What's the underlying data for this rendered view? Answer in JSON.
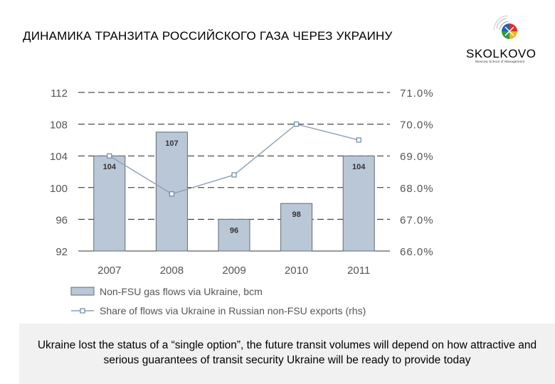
{
  "title": "ДИНАМИКА ТРАНЗИТА РОССИЙСКОГО ГАЗА ЧЕРЕЗ УКРАИНУ",
  "logo": {
    "name": "SKOLKOVO",
    "subtitle": "Moscow School of Management"
  },
  "caption": "Ukraine lost the status of a “single option”, the future transit volumes will depend on how attractive and serious guarantees of transit security Ukraine will be ready to provide today",
  "colors": {
    "bar_fill": "#b9c7d6",
    "bar_stroke": "#5f6b78",
    "line": "#8c9fb3",
    "marker_stroke": "#6f86a0",
    "axis_text": "#555555"
  },
  "chart_data": {
    "type": "bar",
    "categories": [
      "2007",
      "2008",
      "2009",
      "2010",
      "2011"
    ],
    "series": [
      {
        "name": "Non-FSU gas flows via Ukraine, bcm",
        "type": "bar",
        "axis": "left",
        "values": [
          104,
          107,
          96,
          98,
          104
        ],
        "labels": [
          "104",
          "107",
          "96",
          "98",
          "104"
        ]
      },
      {
        "name": "Share of flows via Ukraine in Russian non-FSU exports (rhs)",
        "type": "line",
        "axis": "right",
        "values": [
          69.0,
          67.8,
          68.4,
          70.0,
          69.5
        ]
      }
    ],
    "ylim_left": [
      92,
      112
    ],
    "yticks_left": [
      "112",
      "108",
      "104",
      "100",
      "96",
      "92"
    ],
    "ylim_right": [
      66.0,
      71.0
    ],
    "yticks_right": [
      "71.0%",
      "70.0%",
      "69.0%",
      "68.0%",
      "67.0%",
      "66.0%"
    ],
    "grid": "dashed horizontal",
    "legend": "bottom"
  }
}
